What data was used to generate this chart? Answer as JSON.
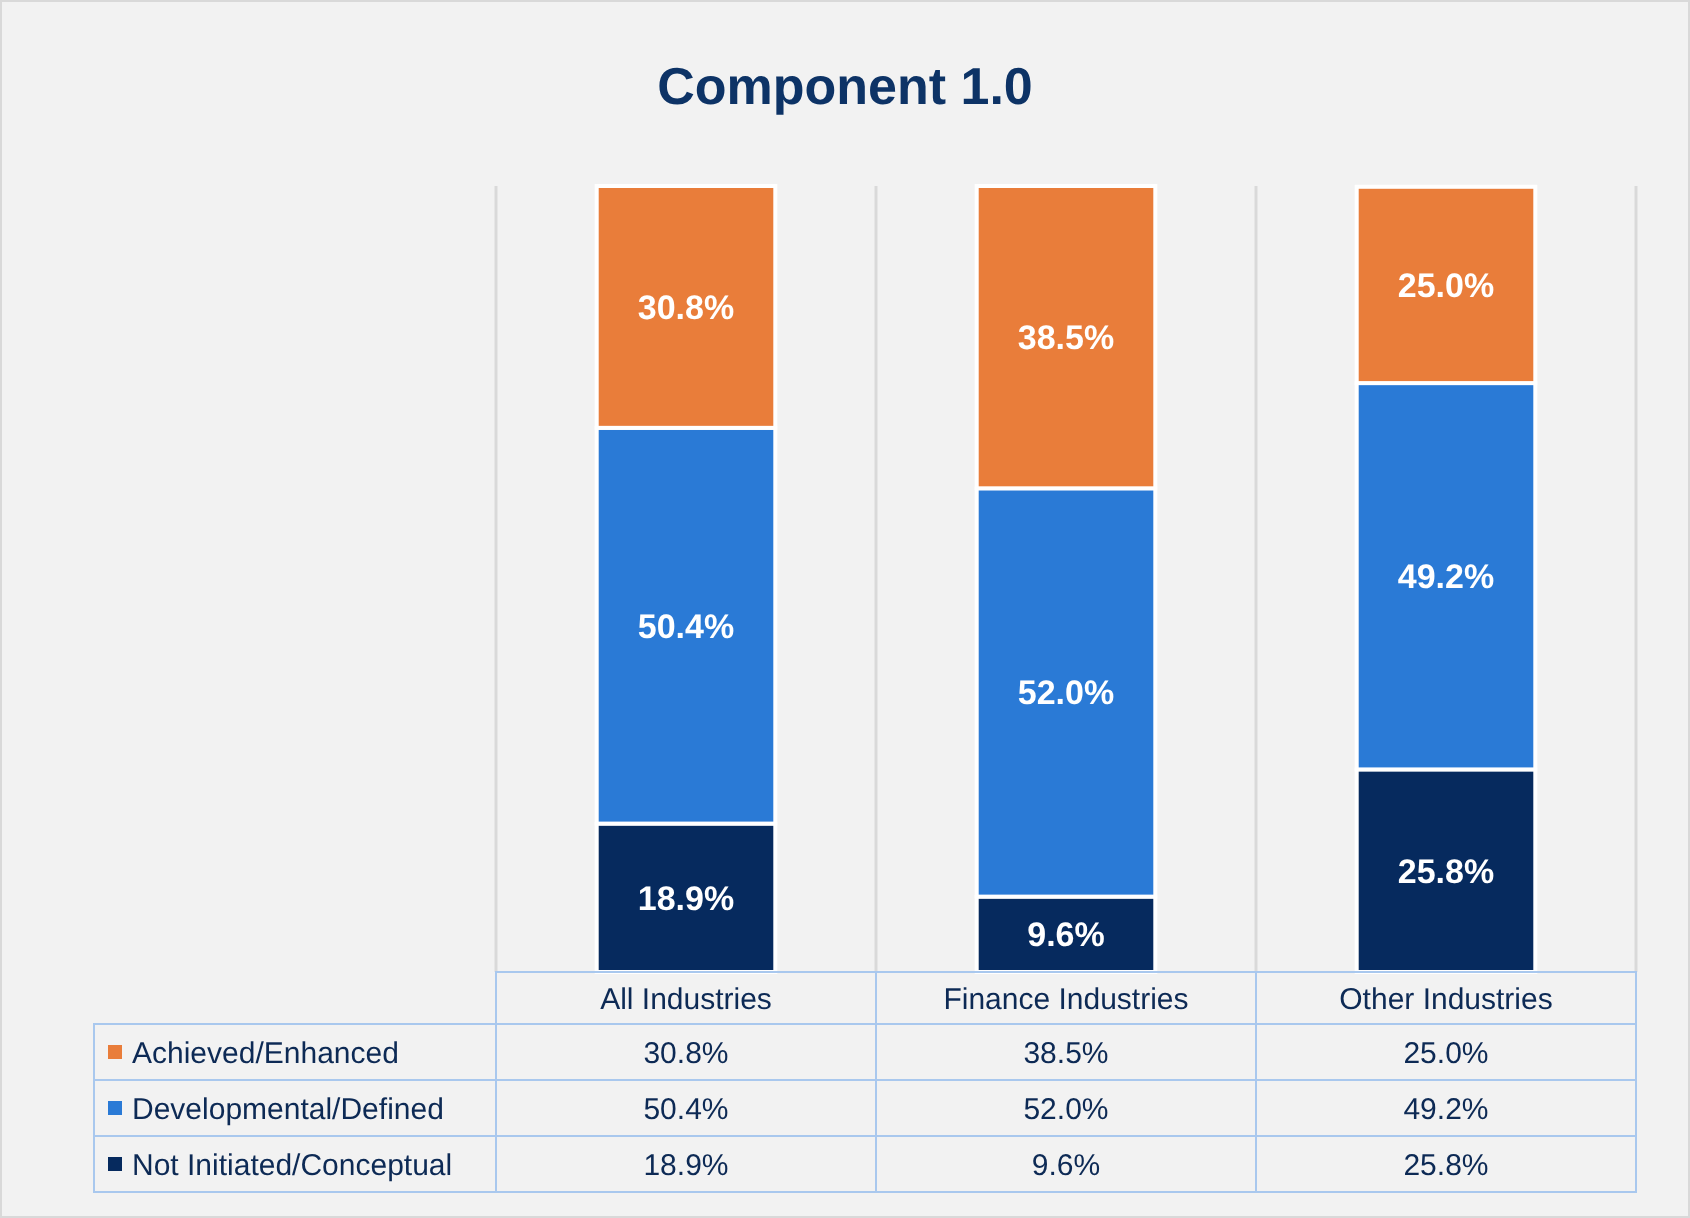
{
  "chart_data": {
    "type": "bar",
    "title": "Component 1.0",
    "stacked": true,
    "legend": "bottom",
    "grid": "x",
    "categories": [
      "All Industries",
      "Finance Industries",
      "Other Industries"
    ],
    "series": [
      {
        "name": "Not Initiated/Conceptual",
        "color": "#062a5e",
        "values": [
          18.9,
          9.6,
          25.8
        ],
        "value_labels": [
          "18.9%",
          "9.6%",
          "25.8%"
        ]
      },
      {
        "name": "Developmental/Defined",
        "color": "#2a7ad6",
        "values": [
          50.4,
          52.0,
          49.2
        ],
        "value_labels": [
          "50.4%",
          "52.0%",
          "49.2%"
        ]
      },
      {
        "name": "Achieved/Enhanced",
        "color": "#e97d3a",
        "values": [
          30.8,
          38.5,
          25.0
        ],
        "value_labels": [
          "30.8%",
          "38.5%",
          "25.0%"
        ]
      }
    ]
  }
}
